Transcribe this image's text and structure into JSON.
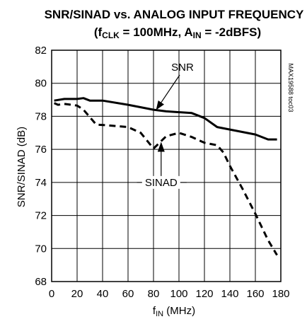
{
  "chart_data": {
    "type": "line",
    "title": "SNR/SINAD vs. ANALOG INPUT FREQUENCY",
    "subtitle": {
      "open": "(f",
      "clk_sub": "CLK",
      "mid": " = 100MHz, A",
      "in_sub": "IN",
      "close": " = -2dBFS)"
    },
    "xlabel": {
      "main": "f",
      "sub": "IN",
      "unit": " (MHz)"
    },
    "ylabel": "SNR/SINAD (dB)",
    "xlim": [
      0,
      180
    ],
    "ylim": [
      68,
      82
    ],
    "xticks": [
      "0",
      "20",
      "40",
      "60",
      "80",
      "100",
      "120",
      "140",
      "160",
      "180"
    ],
    "yticks": [
      "68",
      "70",
      "72",
      "74",
      "76",
      "78",
      "80",
      "82"
    ],
    "grid": true,
    "side_code": "MAX19588 toc03",
    "series": [
      {
        "name": "SNR",
        "style": "solid",
        "x": [
          2,
          10,
          20,
          25,
          30,
          40,
          60,
          80,
          90,
          100,
          110,
          120,
          130,
          140,
          150,
          160,
          170,
          177
        ],
        "y": [
          78.95,
          79.05,
          79.05,
          79.1,
          78.95,
          78.95,
          78.7,
          78.4,
          78.3,
          78.25,
          78.2,
          77.9,
          77.35,
          77.2,
          77.05,
          76.9,
          76.6,
          76.6
        ]
      },
      {
        "name": "SINAD",
        "style": "dashed",
        "x": [
          2,
          5,
          10,
          20,
          25,
          35,
          45,
          60,
          70,
          80,
          90,
          100,
          110,
          120,
          130,
          135,
          140,
          150,
          160,
          170,
          177
        ],
        "y": [
          78.8,
          78.7,
          78.75,
          78.65,
          78.4,
          77.5,
          77.45,
          77.35,
          77.0,
          76.05,
          76.8,
          77.0,
          76.75,
          76.4,
          76.25,
          75.8,
          75.0,
          73.6,
          72.1,
          70.5,
          69.6
        ]
      }
    ],
    "annotations": [
      {
        "text": "SNR",
        "target_series": 0,
        "target_x": 82
      },
      {
        "text": "SINAD",
        "target_series": 1,
        "target_x": 86
      }
    ]
  }
}
